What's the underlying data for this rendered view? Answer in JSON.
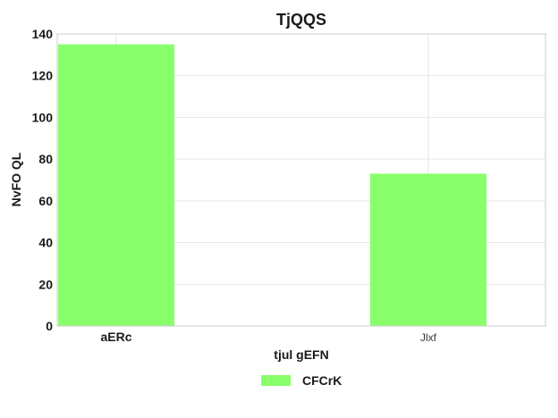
{
  "chart_data": {
    "type": "bar",
    "title": "TjQQS",
    "xlabel": "tjul gEFN",
    "ylabel": "NvFO QL",
    "categories": [
      "aERc",
      "Jlxf"
    ],
    "series": [
      {
        "name": "CFCrK",
        "values": [
          135,
          73
        ],
        "color": "#88ff6b"
      }
    ],
    "ylim": [
      0,
      140
    ],
    "yticks": [
      0,
      20,
      40,
      60,
      80,
      100,
      120,
      140
    ],
    "grid": true,
    "legend_position": "bottom-center"
  }
}
